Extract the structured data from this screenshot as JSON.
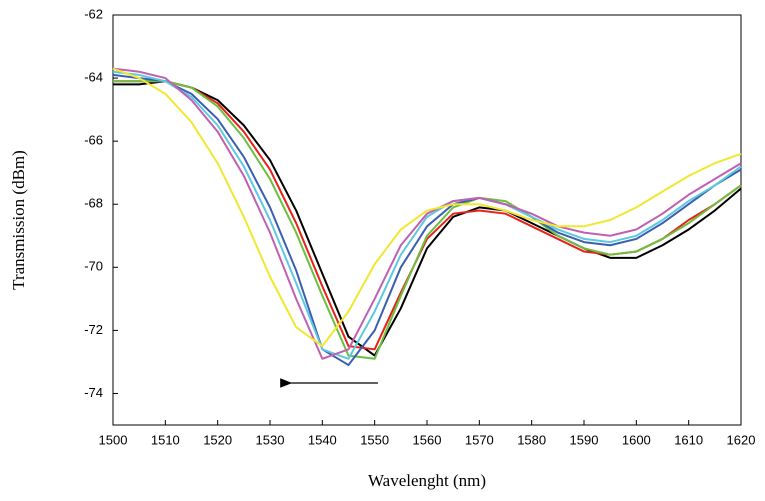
{
  "chart_data": {
    "type": "line",
    "xlabel": "Wavelenght (nm)",
    "ylabel": "Transmission (dBm)",
    "x": [
      1500,
      1505,
      1510,
      1515,
      1520,
      1525,
      1530,
      1535,
      1540,
      1545,
      1550,
      1555,
      1560,
      1565,
      1570,
      1575,
      1580,
      1585,
      1590,
      1595,
      1600,
      1605,
      1610,
      1615,
      1620
    ],
    "series": [
      {
        "color": "#000000",
        "values": [
          -64.2,
          -64.2,
          -64.1,
          -64.3,
          -64.7,
          -65.5,
          -66.6,
          -68.2,
          -70.2,
          -72.2,
          -72.8,
          -71.3,
          -69.4,
          -68.4,
          -68.1,
          -68.2,
          -68.6,
          -69.0,
          -69.4,
          -69.7,
          -69.7,
          -69.3,
          -68.8,
          -68.2,
          -67.5
        ]
      },
      {
        "color": "#e8221b",
        "values": [
          -64.1,
          -64.1,
          -64.1,
          -64.3,
          -64.8,
          -65.7,
          -66.9,
          -68.6,
          -70.6,
          -72.5,
          -72.6,
          -70.8,
          -69.1,
          -68.3,
          -68.2,
          -68.3,
          -68.7,
          -69.1,
          -69.5,
          -69.6,
          -69.5,
          -69.1,
          -68.5,
          -68.0,
          -67.4
        ]
      },
      {
        "color": "#6cbf3f",
        "values": [
          -64.1,
          -64.1,
          -64.1,
          -64.3,
          -64.9,
          -65.9,
          -67.2,
          -68.9,
          -70.9,
          -72.8,
          -72.9,
          -70.9,
          -69.0,
          -68.1,
          -67.8,
          -67.9,
          -68.4,
          -69.0,
          -69.4,
          -69.6,
          -69.5,
          -69.1,
          -68.6,
          -68.0,
          -67.4
        ]
      },
      {
        "color": "#3a5fb0",
        "values": [
          -63.9,
          -64.0,
          -64.1,
          -64.5,
          -65.3,
          -66.5,
          -68.1,
          -70.1,
          -72.6,
          -73.1,
          -72.0,
          -70.0,
          -68.7,
          -68.0,
          -67.8,
          -68.0,
          -68.4,
          -68.9,
          -69.2,
          -69.3,
          -69.1,
          -68.6,
          -68.0,
          -67.4,
          -66.9
        ]
      },
      {
        "color": "#5ec8e0",
        "values": [
          -63.8,
          -63.9,
          -64.1,
          -64.6,
          -65.5,
          -66.8,
          -68.5,
          -70.5,
          -72.6,
          -72.9,
          -71.4,
          -69.6,
          -68.4,
          -67.9,
          -67.8,
          -68.0,
          -68.4,
          -68.8,
          -69.1,
          -69.2,
          -69.0,
          -68.5,
          -67.9,
          -67.4,
          -66.8
        ]
      },
      {
        "color": "#c060b0",
        "values": [
          -63.7,
          -63.8,
          -64.0,
          -64.7,
          -65.7,
          -67.1,
          -68.9,
          -71.0,
          -72.9,
          -72.6,
          -71.0,
          -69.3,
          -68.3,
          -67.9,
          -67.8,
          -68.0,
          -68.3,
          -68.7,
          -68.9,
          -69.0,
          -68.8,
          -68.3,
          -67.7,
          -67.2,
          -66.7
        ]
      },
      {
        "color": "#f0e830",
        "values": [
          -63.7,
          -64.0,
          -64.5,
          -65.4,
          -66.7,
          -68.4,
          -70.3,
          -71.9,
          -72.5,
          -71.4,
          -69.9,
          -68.8,
          -68.2,
          -68.0,
          -68.0,
          -68.2,
          -68.5,
          -68.7,
          -68.7,
          -68.5,
          -68.1,
          -67.6,
          -67.1,
          -66.7,
          -66.4
        ]
      }
    ],
    "xlim": [
      1500,
      1620
    ],
    "xticks": [
      1500,
      1510,
      1520,
      1530,
      1540,
      1550,
      1560,
      1570,
      1580,
      1590,
      1600,
      1610,
      1620
    ],
    "ylim": [
      -75,
      -62
    ],
    "yticks": [
      -62,
      -64,
      -66,
      -68,
      -70,
      -72,
      -74
    ]
  }
}
